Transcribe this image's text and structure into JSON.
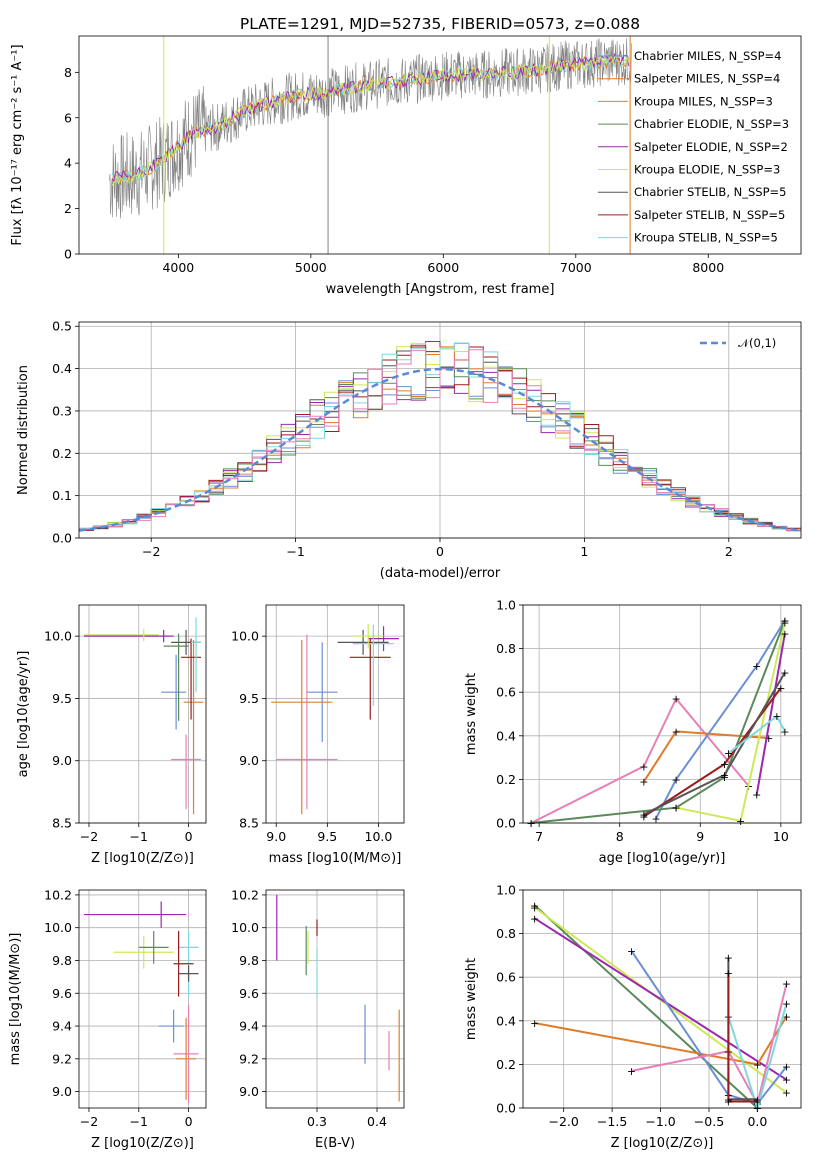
{
  "figure": {
    "title": "PLATE=1291, MJD=52735, FIBERID=0573, z=0.088",
    "colors": {
      "Chabrier MILES": "#6b8fd6",
      "Salpeter MILES": "#e07b2a",
      "Kroupa MILES": "#e0802a",
      "Chabrier ELODIE": "#5a8a5a",
      "Salpeter ELODIE": "#9b27b0",
      "Kroupa ELODIE": "#cfe85a",
      "Chabrier STELIB": "#555555",
      "Salpeter STELIB": "#9b1c1c",
      "Kroupa STELIB": "#7fd8dd",
      "pink": "#e87fb8",
      "data": "#808080"
    }
  },
  "chart_data": [
    {
      "type": "line",
      "panel": "spectrum",
      "xlabel": "wavelength [Angstrom, rest frame]",
      "ylabel": "Flux [fλ 10⁻¹⁷ erg cm⁻² s⁻¹ A⁻¹]",
      "xlim": [
        3250,
        8700
      ],
      "ylim": [
        0,
        9.6
      ],
      "xticks": [
        "4000",
        "5000",
        "6000",
        "7000",
        "8000"
      ],
      "yticks": [
        "0",
        "2",
        "4",
        "6",
        "8"
      ],
      "legend_position": "right",
      "legend": [
        "Chabrier MILES, N_SSP=4",
        "Salpeter MILES, N_SSP=4",
        "Kroupa MILES, N_SSP=3",
        "Chabrier ELODIE, N_SSP=3",
        "Salpeter ELODIE, N_SSP=2",
        "Kroupa ELODIE, N_SSP=3",
        "Chabrier STELIB, N_SSP=5",
        "Salpeter STELIB, N_SSP=5",
        "Kroupa STELIB, N_SSP=5"
      ],
      "series": [
        {
          "name": "data",
          "x": [
            3500,
            3700,
            3900,
            4100,
            4300,
            4500,
            4700,
            4900,
            5100,
            5300,
            5500,
            5700,
            5900,
            6100,
            6300,
            6500,
            6700,
            6900,
            7100,
            7300,
            7400
          ],
          "y": [
            3.3,
            3.5,
            4.2,
            5.3,
            5.6,
            6.3,
            6.7,
            7.0,
            7.1,
            7.3,
            7.5,
            7.6,
            7.8,
            7.9,
            7.9,
            8.0,
            8.1,
            8.3,
            8.4,
            8.5,
            8.5
          ]
        },
        {
          "name": "models",
          "x": [
            3500,
            3700,
            3900,
            4100,
            4300,
            4500,
            4700,
            4900,
            5100,
            5300,
            5500,
            5700,
            5900,
            6100,
            6300,
            6500,
            6700,
            6900,
            7100,
            7300,
            7400
          ],
          "y": [
            3.6,
            3.3,
            4.3,
            5.4,
            5.7,
            6.3,
            6.7,
            6.9,
            7.1,
            7.3,
            7.5,
            7.6,
            7.8,
            7.9,
            8.0,
            8.1,
            8.2,
            8.3,
            8.4,
            8.5,
            8.6
          ]
        }
      ]
    },
    {
      "type": "line",
      "panel": "residual histogram",
      "xlabel": "(data-model)/error",
      "ylabel": "Normed distribution",
      "xlim": [
        -2.5,
        2.5
      ],
      "ylim": [
        0,
        0.51
      ],
      "xticks": [
        "−2",
        "−1",
        "0",
        "1",
        "2"
      ],
      "yticks": [
        "0.0",
        "0.1",
        "0.2",
        "0.3",
        "0.4",
        "0.5"
      ],
      "legend": [
        "𝒩(0,1)"
      ],
      "legend_position": "top-right",
      "grid": true
    },
    {
      "type": "scatter",
      "panel": "age vs Z",
      "xlabel": "Z [log10(Z/Z⊙)]",
      "ylabel": "age  [log10(age/yr)]",
      "xlim": [
        -2.2,
        0.35
      ],
      "ylim": [
        8.5,
        10.25
      ],
      "xticks": [
        "−2",
        "−1",
        "0"
      ],
      "yticks": [
        "8.5",
        "9.0",
        "9.5",
        "10.0"
      ],
      "grid": true
    },
    {
      "type": "scatter",
      "panel": "age vs mass",
      "xlabel": "mass [log10(M/M⊙)]",
      "ylabel": "",
      "xlim": [
        8.9,
        10.25
      ],
      "ylim": [
        8.5,
        10.25
      ],
      "xticks": [
        "9.0",
        "9.5",
        "10.0"
      ],
      "yticks": [
        "8.5",
        "9.0",
        "9.5",
        "10.0"
      ],
      "grid": true
    },
    {
      "type": "line",
      "panel": "mass weight vs age",
      "xlabel": "age  [log10(age/yr)]",
      "ylabel": "mass weight",
      "xlim": [
        6.8,
        10.25
      ],
      "ylim": [
        0,
        1.0
      ],
      "xticks": [
        "7",
        "8",
        "9",
        "10"
      ],
      "yticks": [
        "0.0",
        "0.2",
        "0.4",
        "0.6",
        "0.8",
        "1.0"
      ],
      "grid": true
    },
    {
      "type": "scatter",
      "panel": "mass vs Z",
      "xlabel": "Z [log10(Z/Z⊙)]",
      "ylabel": "mass [log10(M/M⊙)]",
      "xlim": [
        -2.2,
        0.35
      ],
      "ylim": [
        8.9,
        10.23
      ],
      "xticks": [
        "−2",
        "−1",
        "0"
      ],
      "yticks": [
        "9.0",
        "9.2",
        "9.4",
        "9.6",
        "9.8",
        "10.0",
        "10.2"
      ],
      "grid": true
    },
    {
      "type": "scatter",
      "panel": "mass vs E(B-V)",
      "xlabel": "E(B-V)",
      "ylabel": "",
      "xlim": [
        0.215,
        0.445
      ],
      "ylim": [
        8.9,
        10.23
      ],
      "xticks": [
        "0.3",
        "0.4"
      ],
      "yticks": [
        "9.0",
        "9.2",
        "9.4",
        "9.6",
        "9.8",
        "10.0",
        "10.2"
      ],
      "grid": true
    },
    {
      "type": "line",
      "panel": "mass weight vs Z",
      "xlabel": "Z [log10(Z/Z⊙)]",
      "ylabel": "mass weight",
      "xlim": [
        -2.42,
        0.45
      ],
      "ylim": [
        0,
        1.0
      ],
      "xticks": [
        "−2.0",
        "−1.5",
        "−1.0",
        "−0.5",
        "0.0"
      ],
      "yticks": [
        "0.0",
        "0.2",
        "0.4",
        "0.6",
        "0.8",
        "1.0"
      ],
      "grid": true
    }
  ]
}
